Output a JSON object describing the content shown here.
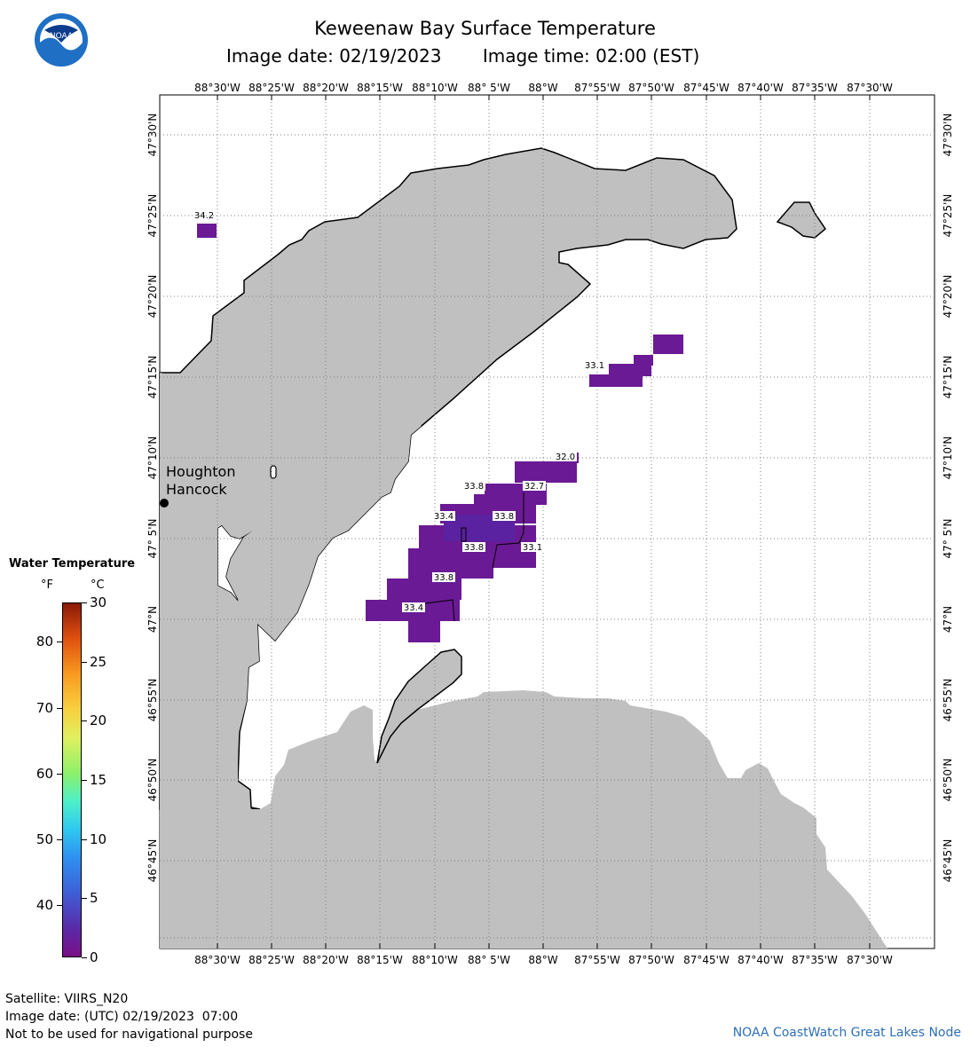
{
  "header": {
    "title": "Keweenaw Bay Surface Temperature",
    "image_date": "Image date: 02/19/2023",
    "image_time": "Image time: 02:00 (EST)"
  },
  "logo": {
    "name": "NOAA",
    "icon": "noaa-logo-icon"
  },
  "map": {
    "lon_labels": [
      "88°30'W",
      "88°25'W",
      "88°20'W",
      "88°15'W",
      "88°10'W",
      "88° 5'W",
      "88°W",
      "87°55'W",
      "87°50'W",
      "87°45'W",
      "87°40'W",
      "87°35'W",
      "87°30'W"
    ],
    "lat_labels": [
      "47°30'N",
      "47°25'N",
      "47°20'N",
      "47°15'N",
      "47°10'N",
      "47° 5'N",
      "47°N",
      "46°55'N",
      "46°50'N",
      "46°45'N"
    ],
    "place_labels": [
      "Houghton",
      "Hancock"
    ],
    "land_color": "#c0c0c0",
    "water_color": "#ffffff",
    "temperature_labels": [
      "34.2",
      "33.1",
      "32.0",
      "33.8",
      "32.7",
      "33.4",
      "33.8",
      "33.8",
      "33.1",
      "33.8",
      "33.4"
    ]
  },
  "legend": {
    "title": "Water Temperature",
    "unit_f": "°F",
    "unit_c": "°C",
    "f_ticks": [
      "40",
      "50",
      "60",
      "70",
      "80"
    ],
    "c_ticks": [
      "0",
      "5",
      "10",
      "15",
      "20",
      "25",
      "30"
    ]
  },
  "footer": {
    "satellite": "Satellite: VIIRS_N20",
    "utc_date": "Image date: (UTC) 02/19/2023  07:00",
    "disclaimer": "Not to be used for navigational purpose",
    "credit": "NOAA CoastWatch Great Lakes Node"
  }
}
